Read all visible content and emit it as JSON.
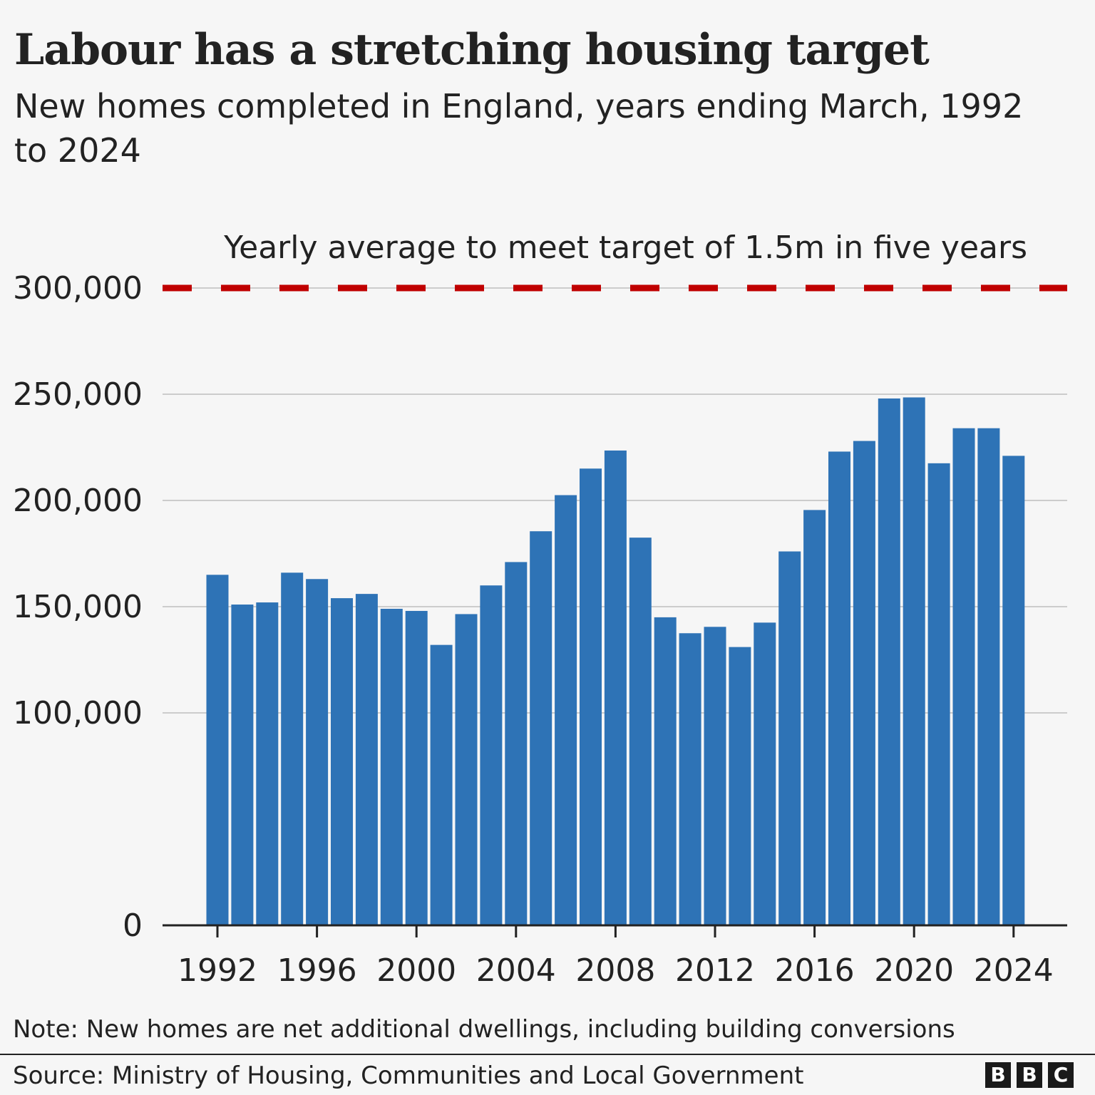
{
  "header": {
    "title": "Labour has a stretching housing target",
    "subtitle": "New homes completed in England, years ending March, 1992 to 2024"
  },
  "chart_data": {
    "type": "bar",
    "title": "Labour has a stretching housing target",
    "subtitle": "New homes completed in England, years ending March, 1992 to 2024",
    "categories": [
      1992,
      1993,
      1994,
      1995,
      1996,
      1997,
      1998,
      1999,
      2000,
      2001,
      2002,
      2003,
      2004,
      2005,
      2006,
      2007,
      2008,
      2009,
      2010,
      2011,
      2012,
      2013,
      2014,
      2015,
      2016,
      2017,
      2018,
      2019,
      2020,
      2021,
      2022,
      2023,
      2024
    ],
    "values": [
      165000,
      151000,
      152000,
      166000,
      163000,
      154000,
      156000,
      149000,
      148000,
      132000,
      146500,
      160000,
      171000,
      185500,
      202500,
      215000,
      223500,
      182500,
      145000,
      137500,
      140500,
      131000,
      142500,
      176000,
      195500,
      223000,
      228000,
      248000,
      248500,
      217500,
      234000,
      234000,
      221000
    ],
    "x_tick_labels": [
      "1992",
      "1996",
      "2000",
      "2004",
      "2008",
      "2012",
      "2016",
      "2020",
      "2024"
    ],
    "y_tick_labels": [
      "0",
      "100,000",
      "150,000",
      "200,000",
      "250,000",
      "300,000"
    ],
    "y_ticks": [
      0,
      100000,
      150000,
      200000,
      250000,
      300000
    ],
    "ylim": [
      0,
      300000
    ],
    "grid": true,
    "bar_color": "#2e73b6",
    "reference_line": {
      "value": 300000,
      "label": "Yearly average to meet target of 1.5m in five years",
      "color": "#c00000",
      "style": "dashed"
    }
  },
  "footer": {
    "note": "Note: New homes are net additional dwellings, including building conversions",
    "source": "Source: Ministry of Housing, Communities and Local Government",
    "logo_letters": [
      "B",
      "B",
      "C"
    ]
  }
}
